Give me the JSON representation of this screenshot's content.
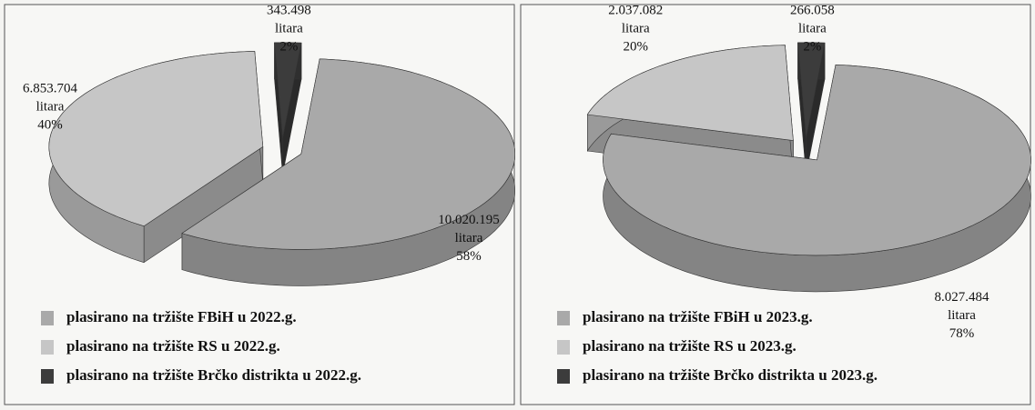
{
  "chart_data": [
    {
      "type": "pie",
      "categories": [
        "plasirano na tržište FBiH u 2022.g.",
        "plasirano na tržište RS u 2022.g.",
        "plasirano na tržište Brčko distrikta u 2022.g."
      ],
      "values": [
        58,
        40,
        2
      ],
      "value_labels": [
        "58%",
        "40%",
        "2%"
      ],
      "amount_labels": [
        "10.020.195",
        "6.853.704",
        "343.498"
      ],
      "unit": "litara",
      "colors": [
        "#a9a9a9",
        "#c6c6c6",
        "#3c3c3c"
      ]
    },
    {
      "type": "pie",
      "categories": [
        "plasirano na tržište FBiH u 2023.g.",
        "plasirano na tržište RS u 2023.g.",
        "plasirano na tržište Brčko distrikta u 2023.g."
      ],
      "values": [
        78,
        20,
        2
      ],
      "value_labels": [
        "78%",
        "20%",
        "2%"
      ],
      "amount_labels": [
        "8.027.484",
        "2.037.082",
        "266.058"
      ],
      "unit": "litara",
      "colors": [
        "#a9a9a9",
        "#c6c6c6",
        "#3c3c3c"
      ]
    }
  ]
}
